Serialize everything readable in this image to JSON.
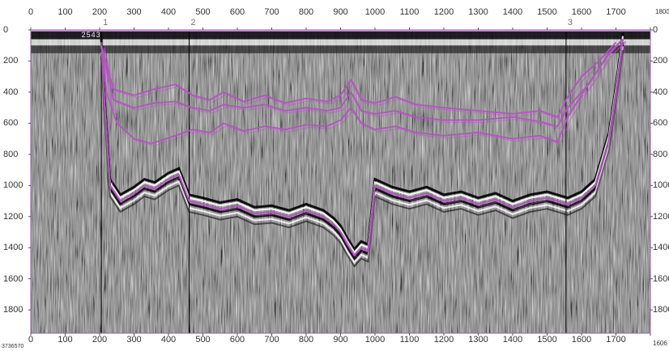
{
  "chart_data": {
    "type": "radargram",
    "x_ticks": [
      "0",
      "100",
      "200",
      "300",
      "400",
      "500",
      "600",
      "700",
      "800",
      "900",
      "1000",
      "1100",
      "1200",
      "1300",
      "1400",
      "1500",
      "1600",
      "1700",
      "1800"
    ],
    "y_ticks": [
      "0",
      "200",
      "400",
      "600",
      "800",
      "1000",
      "1200",
      "1400",
      "1600",
      "1800"
    ],
    "xlim": [
      0,
      1800
    ],
    "ylim": [
      0,
      1950
    ],
    "y_inverted": true,
    "grayscale_background": true,
    "markers": [
      {
        "label": "1",
        "x": 205
      },
      {
        "label": "2",
        "x": 460
      },
      {
        "label": "3",
        "x": 1555
      }
    ],
    "top_extra_labels": [
      "2",
      "5",
      "4",
      "3"
    ],
    "horizons": [
      {
        "color": "#b553c4",
        "points": [
          [
            205,
            100
          ],
          [
            240,
            380
          ],
          [
            300,
            420
          ],
          [
            360,
            380
          ],
          [
            420,
            350
          ],
          [
            470,
            420
          ],
          [
            520,
            450
          ],
          [
            560,
            400
          ],
          [
            620,
            460
          ],
          [
            680,
            420
          ],
          [
            740,
            470
          ],
          [
            800,
            440
          ],
          [
            860,
            460
          ],
          [
            900,
            420
          ],
          [
            930,
            320
          ],
          [
            960,
            450
          ],
          [
            1000,
            470
          ],
          [
            1060,
            430
          ],
          [
            1120,
            480
          ],
          [
            1200,
            500
          ],
          [
            1300,
            520
          ],
          [
            1400,
            540
          ],
          [
            1480,
            520
          ],
          [
            1530,
            560
          ],
          [
            1560,
            430
          ],
          [
            1600,
            300
          ],
          [
            1650,
            200
          ],
          [
            1700,
            80
          ]
        ]
      },
      {
        "color": "#b553c4",
        "points": [
          [
            205,
            100
          ],
          [
            240,
            450
          ],
          [
            300,
            500
          ],
          [
            360,
            470
          ],
          [
            420,
            460
          ],
          [
            470,
            500
          ],
          [
            520,
            520
          ],
          [
            560,
            480
          ],
          [
            620,
            500
          ],
          [
            680,
            480
          ],
          [
            740,
            520
          ],
          [
            800,
            500
          ],
          [
            860,
            520
          ],
          [
            900,
            500
          ],
          [
            930,
            400
          ],
          [
            960,
            520
          ],
          [
            1000,
            540
          ],
          [
            1060,
            520
          ],
          [
            1120,
            560
          ],
          [
            1200,
            580
          ],
          [
            1300,
            580
          ],
          [
            1400,
            560
          ],
          [
            1480,
            590
          ],
          [
            1530,
            620
          ],
          [
            1560,
            500
          ],
          [
            1620,
            350
          ],
          [
            1680,
            150
          ],
          [
            1720,
            60
          ]
        ]
      },
      {
        "color": "#b553c4",
        "points": [
          [
            205,
            100
          ],
          [
            220,
            400
          ],
          [
            250,
            600
          ],
          [
            300,
            700
          ],
          [
            350,
            730
          ],
          [
            420,
            680
          ],
          [
            470,
            640
          ],
          [
            520,
            660
          ],
          [
            560,
            600
          ],
          [
            620,
            650
          ],
          [
            680,
            620
          ],
          [
            740,
            640
          ],
          [
            800,
            610
          ],
          [
            860,
            620
          ],
          [
            900,
            580
          ],
          [
            930,
            500
          ],
          [
            960,
            600
          ],
          [
            1000,
            640
          ],
          [
            1060,
            620
          ],
          [
            1120,
            660
          ],
          [
            1200,
            680
          ],
          [
            1300,
            660
          ],
          [
            1400,
            700
          ],
          [
            1480,
            680
          ],
          [
            1530,
            720
          ],
          [
            1560,
            560
          ],
          [
            1620,
            350
          ],
          [
            1680,
            150
          ],
          [
            1720,
            60
          ]
        ]
      },
      {
        "color": "#b553c4",
        "points": [
          [
            205,
            100
          ],
          [
            215,
            500
          ],
          [
            230,
            1000
          ],
          [
            260,
            1100
          ],
          [
            300,
            1050
          ],
          [
            330,
            1000
          ],
          [
            360,
            1020
          ],
          [
            400,
            960
          ],
          [
            430,
            930
          ],
          [
            460,
            1100
          ],
          [
            500,
            1120
          ],
          [
            550,
            1150
          ],
          [
            600,
            1130
          ],
          [
            650,
            1180
          ],
          [
            700,
            1170
          ],
          [
            750,
            1200
          ],
          [
            800,
            1160
          ],
          [
            850,
            1200
          ],
          [
            880,
            1250
          ],
          [
            900,
            1300
          ],
          [
            920,
            1380
          ],
          [
            940,
            1450
          ],
          [
            960,
            1400
          ],
          [
            980,
            1420
          ],
          [
            1000,
            1000
          ],
          [
            1050,
            1050
          ],
          [
            1100,
            1080
          ],
          [
            1150,
            1050
          ],
          [
            1200,
            1100
          ],
          [
            1250,
            1080
          ],
          [
            1300,
            1120
          ],
          [
            1350,
            1090
          ],
          [
            1400,
            1140
          ],
          [
            1450,
            1100
          ],
          [
            1500,
            1080
          ],
          [
            1560,
            1120
          ],
          [
            1600,
            1080
          ],
          [
            1640,
            1000
          ],
          [
            1680,
            700
          ],
          [
            1700,
            400
          ],
          [
            1720,
            60
          ]
        ]
      }
    ]
  },
  "readouts": {
    "bottom_left": "3736570",
    "bottom_right": "1606",
    "top_right_corner": "1800"
  }
}
